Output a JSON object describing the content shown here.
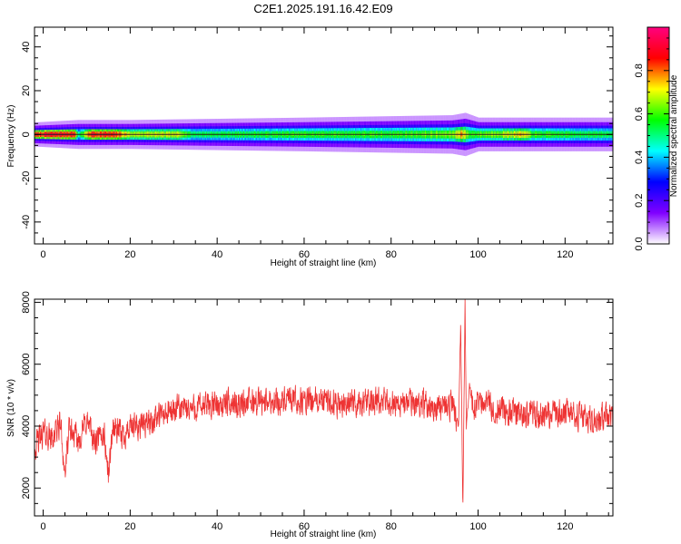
{
  "title": "C2E1.2025.191.16.42.E09",
  "chart_data": [
    {
      "type": "heatmap",
      "xlabel": "Height of straight line (km)",
      "ylabel": "Frequency (Hz)",
      "xlim": [
        -2,
        131
      ],
      "ylim": [
        -50,
        49
      ],
      "x_ticks": [
        0,
        20,
        40,
        60,
        80,
        100,
        120
      ],
      "y_ticks": [
        -40,
        -20,
        0,
        20,
        40
      ],
      "colorbar": {
        "label": "Normalized spectral amplitude",
        "range": [
          0,
          1
        ],
        "ticks": [
          0.0,
          0.2,
          0.4,
          0.6,
          0.8
        ],
        "colors": [
          "#ffffff",
          "#8000ff",
          "#0000ff",
          "#00ffff",
          "#00ff00",
          "#ffff00",
          "#ff0000",
          "#ff0080"
        ]
      },
      "band": {
        "center_hz": 0,
        "halfwidth_hz": [
          [
            -2,
            2.5
          ],
          [
            8,
            3
          ],
          [
            20,
            3
          ],
          [
            60,
            3.5
          ],
          [
            94,
            4
          ],
          [
            97,
            4.5
          ],
          [
            100,
            3.5
          ],
          [
            131,
            3.5
          ]
        ],
        "amplitude": [
          [
            -2,
            0.85
          ],
          [
            0,
            0.9
          ],
          [
            7,
            0.9
          ],
          [
            8,
            0.5
          ],
          [
            11,
            0.9
          ],
          [
            17,
            0.85
          ],
          [
            20,
            0.7
          ],
          [
            32,
            0.7
          ],
          [
            34,
            0.55
          ],
          [
            60,
            0.6
          ],
          [
            80,
            0.6
          ],
          [
            94,
            0.65
          ],
          [
            96,
            0.8
          ],
          [
            98,
            0.6
          ],
          [
            110,
            0.75
          ],
          [
            113,
            0.6
          ],
          [
            131,
            0.55
          ]
        ]
      }
    },
    {
      "type": "line",
      "xlabel": "Height of straight line (km)",
      "ylabel": "SNR (10 * v/v)",
      "xlim": [
        -2,
        131
      ],
      "ylim": [
        1100,
        8100
      ],
      "x_ticks": [
        0,
        20,
        40,
        60,
        80,
        100,
        120
      ],
      "y_ticks": [
        2000,
        4000,
        6000,
        8000
      ],
      "color": "#ee3333",
      "trend": {
        "x": [
          -2,
          0,
          2,
          4,
          5,
          6,
          8,
          10,
          12,
          14,
          15,
          16,
          18,
          20,
          25,
          30,
          35,
          40,
          50,
          60,
          70,
          80,
          90,
          94,
          95.5,
          96,
          96.5,
          97,
          97.3,
          98,
          99,
          100,
          105,
          110,
          115,
          120,
          125,
          131
        ],
        "y": [
          3300,
          3800,
          3600,
          4100,
          2400,
          3900,
          3500,
          4200,
          3400,
          3800,
          2400,
          4000,
          3700,
          3900,
          4200,
          4500,
          4600,
          4700,
          4800,
          4800,
          4750,
          4750,
          4700,
          4650,
          4000,
          7300,
          1300,
          8000,
          3900,
          5300,
          4500,
          4900,
          4500,
          4400,
          4350,
          4400,
          4300,
          4200
        ]
      },
      "noise_amplitude": 450
    }
  ]
}
